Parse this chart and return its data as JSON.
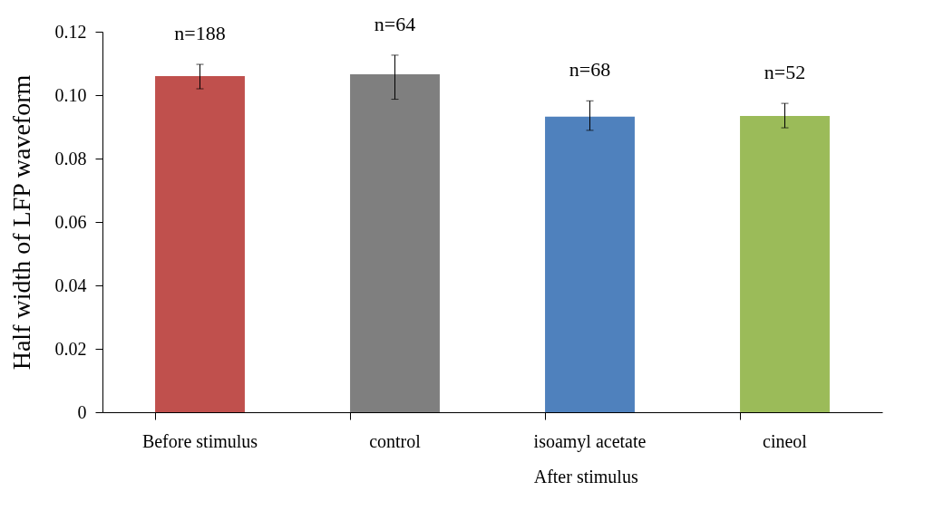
{
  "chart_data": {
    "type": "bar",
    "ylabel": "Half width of LFP waveform",
    "categories": [
      "Before stimulus",
      "control",
      "isoamyl acetate",
      "cineol"
    ],
    "values": [
      0.106,
      0.1066,
      0.0932,
      0.0934
    ],
    "colors": [
      "#c0504d",
      "#7f7f7f",
      "#4f81bd",
      "#9bbb59"
    ],
    "errors": [
      [
        0.102,
        0.1097
      ],
      [
        0.0987,
        0.1126
      ],
      [
        0.0889,
        0.0982
      ],
      [
        0.0897,
        0.0974
      ]
    ],
    "ylim": [
      0,
      0.12
    ],
    "yticks": [
      0,
      0.02,
      0.04,
      0.06,
      0.08,
      {
        "value": 0.1,
        "label": "0.10"
      },
      0.12
    ],
    "annotations": [
      "n=188",
      "n=64",
      "n=68",
      "n=52",
      "After stimulus"
    ],
    "grid": false,
    "legend": false
  }
}
